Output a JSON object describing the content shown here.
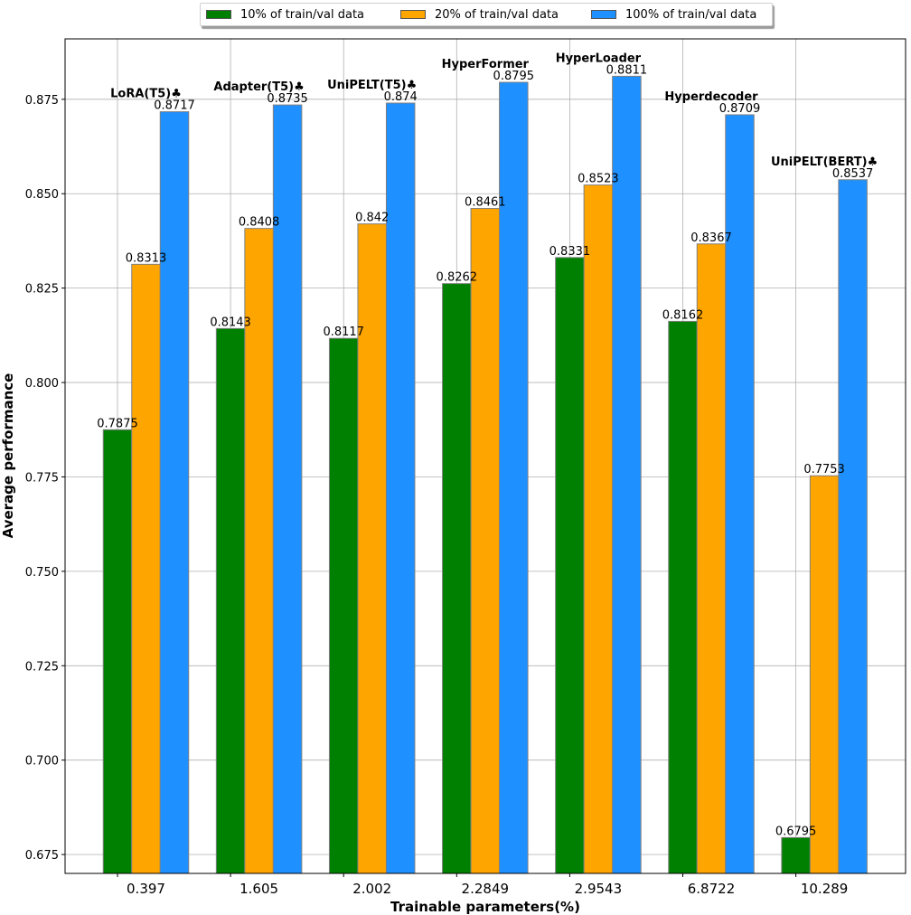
{
  "chart_data": {
    "type": "bar",
    "title": "",
    "xlabel": "Trainable parameters(%)",
    "ylabel": "Average performance",
    "ylim": [
      0.67,
      0.891
    ],
    "yticks": [
      "0.675",
      "0.700",
      "0.725",
      "0.750",
      "0.775",
      "0.800",
      "0.825",
      "0.850",
      "0.875"
    ],
    "grid": true,
    "legend_position": "top-center",
    "categories": [
      "0.397",
      "1.605",
      "2.002",
      "2.2849",
      "2.9543",
      "6.8722",
      "10.289"
    ],
    "method_labels": [
      "LoRA(T5)♣",
      "Adapter(T5)♣",
      "UniPELT(T5)♣",
      "HyperFormer",
      "HyperLoader",
      "Hyperdecoder",
      "UniPELT(BERT)♣"
    ],
    "series": [
      {
        "name": "10% of train/val data",
        "color": "#008000",
        "values": [
          0.7875,
          0.8143,
          0.8117,
          0.8262,
          0.8331,
          0.8162,
          0.6795
        ],
        "labels": [
          "0.7875",
          "0.8143",
          "0.8117",
          "0.8262",
          "0.8331",
          "0.8162",
          "0.6795"
        ]
      },
      {
        "name": "20% of train/val data",
        "color": "#FFA500",
        "values": [
          0.8313,
          0.8408,
          0.842,
          0.8461,
          0.8523,
          0.8367,
          0.7753
        ],
        "labels": [
          "0.8313",
          "0.8408",
          "0.842",
          "0.8461",
          "0.8523",
          "0.8367",
          "0.7753"
        ]
      },
      {
        "name": "100% of train/val data",
        "color": "#1E90FF",
        "values": [
          0.8717,
          0.8735,
          0.874,
          0.8795,
          0.8811,
          0.8709,
          0.8537
        ],
        "labels": [
          "0.8717",
          "0.8735",
          "0.874",
          "0.8795",
          "0.8811",
          "0.8709",
          "0.8537"
        ]
      }
    ]
  }
}
